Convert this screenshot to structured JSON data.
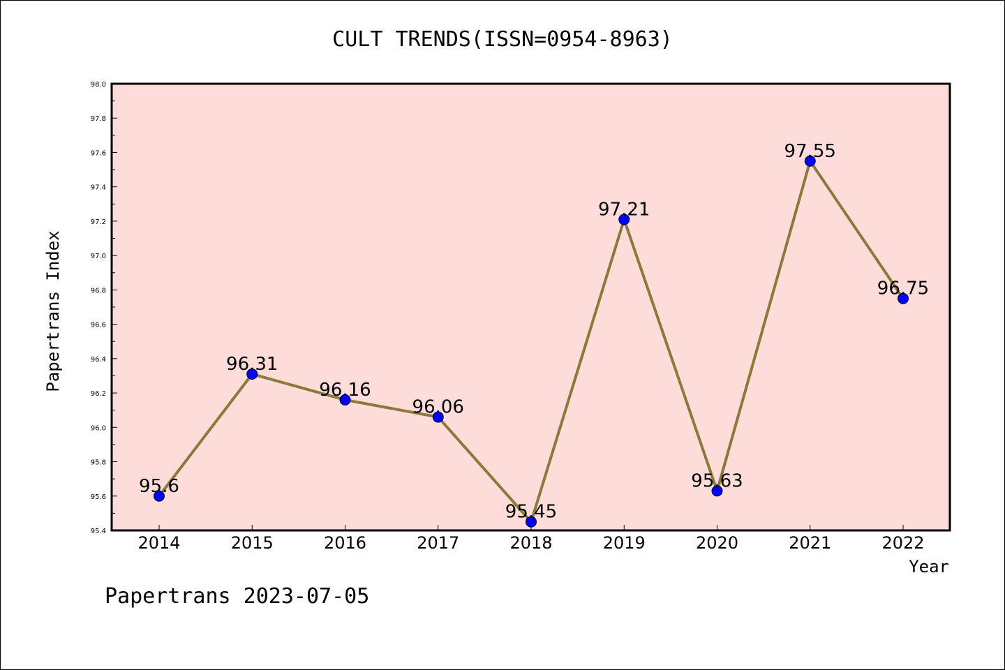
{
  "chart_data": {
    "type": "line",
    "title": "CULT TRENDS(ISSN=0954-8963)",
    "xlabel": "Year",
    "ylabel": "Papertrans Index",
    "categories": [
      "2014",
      "2015",
      "2016",
      "2017",
      "2018",
      "2019",
      "2020",
      "2021",
      "2022"
    ],
    "series": [
      {
        "values": [
          95.6,
          96.31,
          96.16,
          96.06,
          95.45,
          97.21,
          95.63,
          97.55,
          96.75
        ],
        "data_labels": [
          "95.6",
          "96.31",
          "96.16",
          "96.06",
          "95.45",
          "97.21",
          "95.63",
          "97.55",
          "96.75"
        ]
      }
    ],
    "ylim": [
      95.4,
      98.0
    ],
    "yticks": [
      "95.4",
      "95.6",
      "95.8",
      "96.0",
      "96.2",
      "96.4",
      "96.6",
      "96.8",
      "97.0",
      "97.2",
      "97.4",
      "97.6",
      "97.8",
      "98.0"
    ],
    "grid": false,
    "colors": {
      "plot_background": "#fddcda",
      "line": "#8b7a3a",
      "marker": "#0000ff"
    }
  },
  "footer": "Papertrans 2023-07-05"
}
